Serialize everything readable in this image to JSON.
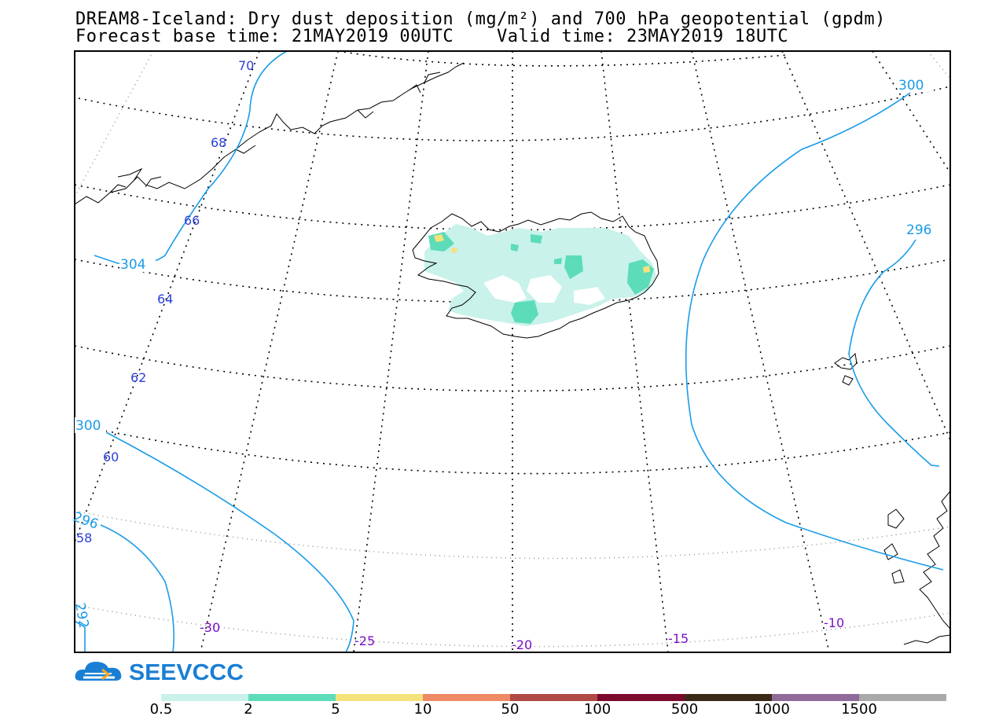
{
  "title": {
    "line1": "DREAM8-Iceland: Dry dust deposition (mg/m²) and 700 hPa geopotential (gpdm)",
    "line2": "Forecast base time: 21MAY2019 00UTC    Valid time: 23MAY2019 18UTC"
  },
  "logo": {
    "text": "SEEVCCC",
    "icon": "cloud-logo-icon",
    "color": "#1a7fd4"
  },
  "latitude_labels": [
    "70",
    "68",
    "66",
    "64",
    "62",
    "60",
    "58"
  ],
  "longitude_labels": [
    "-30",
    "-25",
    "-20",
    "-15",
    "-10"
  ],
  "contour_labels": [
    "300",
    "296",
    "304",
    "300",
    "296",
    "292"
  ],
  "colorbar": {
    "ticks": [
      "0.5",
      "2",
      "5",
      "10",
      "50",
      "100",
      "500",
      "1000",
      "1500"
    ],
    "colors": [
      "#c8f2ea",
      "#5ddcba",
      "#f6e27a",
      "#ee8a64",
      "#b04a44",
      "#7c0a2c",
      "#3a2a18",
      "#8f6a9a",
      "#a9a9a9"
    ]
  },
  "colors": {
    "contour": "#1a9ce8",
    "lat_label": "#2b3fd6",
    "lon_label": "#7a10c8",
    "coast": "#000000"
  }
}
